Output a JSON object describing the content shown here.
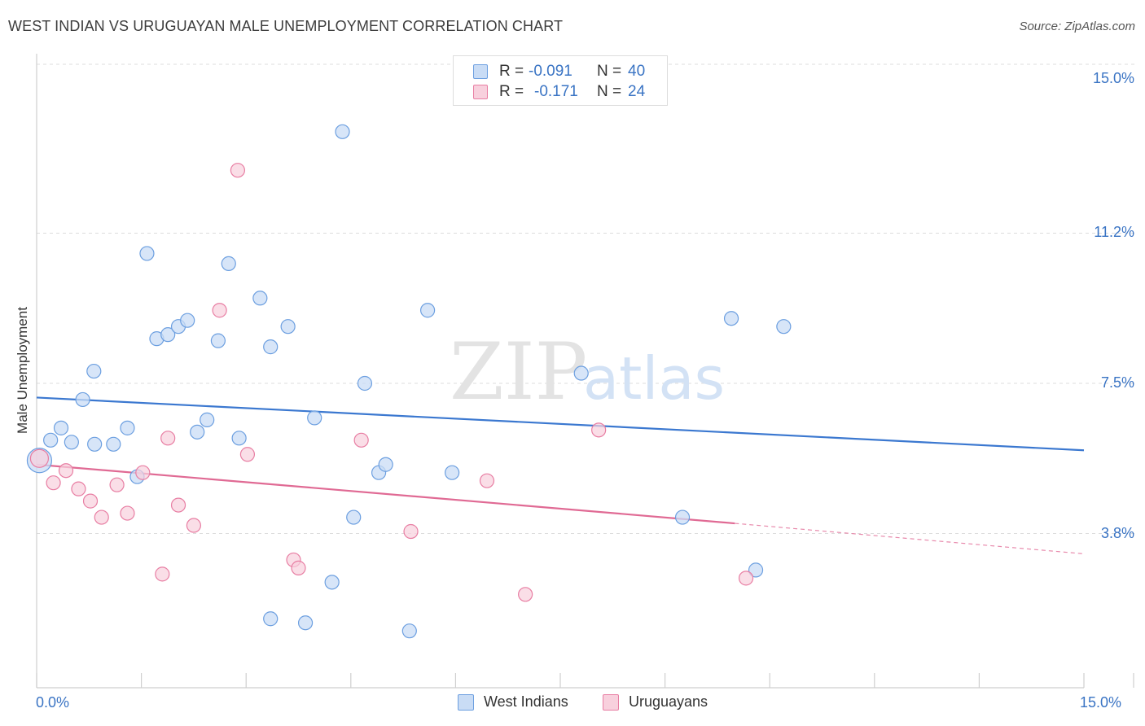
{
  "header": {
    "title": "WEST INDIAN VS URUGUAYAN MALE UNEMPLOYMENT CORRELATION CHART",
    "source": "Source: ZipAtlas.com"
  },
  "watermark": {
    "zip": "ZIP",
    "atlas": "atlas"
  },
  "legend_top": {
    "rows": [
      {
        "r_label": "R =",
        "r_value": "-0.091",
        "n_label": "N =",
        "n_value": "40",
        "color": "#aac8f0"
      },
      {
        "r_label": "R =",
        "r_value": "-0.171",
        "n_label": "N =",
        "n_value": "24",
        "color": "#f5bccd"
      }
    ]
  },
  "legend_bottom": [
    {
      "label": "West Indians",
      "color": "#aac8f0"
    },
    {
      "label": "Uruguayans",
      "color": "#f5bccd"
    }
  ],
  "chart_data": {
    "type": "scatter",
    "title": "WEST INDIAN VS URUGUAYAN MALE UNEMPLOYMENT CORRELATION CHART",
    "xlabel": "",
    "ylabel": "Male Unemployment",
    "xlim": [
      0,
      15
    ],
    "ylim": [
      0,
      15
    ],
    "x_tick_labels": [
      "0.0%",
      "15.0%"
    ],
    "y_ticks": [
      3.8,
      7.5,
      11.2,
      15.0
    ],
    "y_tick_labels": [
      "3.8%",
      "7.5%",
      "11.2%",
      "15.0%"
    ],
    "grid": true,
    "legend_position": "top-center",
    "series": [
      {
        "name": "West Indians",
        "color": "#6c9fe0",
        "fill": "#c9dcf5",
        "points": [
          [
            0.04,
            5.6
          ],
          [
            0.2,
            6.1
          ],
          [
            0.35,
            6.4
          ],
          [
            0.5,
            6.05
          ],
          [
            0.66,
            7.1
          ],
          [
            0.82,
            7.8
          ],
          [
            0.83,
            6.0
          ],
          [
            1.1,
            6.0
          ],
          [
            1.3,
            6.4
          ],
          [
            1.44,
            5.2
          ],
          [
            1.58,
            10.7
          ],
          [
            1.72,
            8.6
          ],
          [
            1.88,
            8.7
          ],
          [
            2.03,
            8.9
          ],
          [
            2.16,
            9.05
          ],
          [
            2.3,
            6.3
          ],
          [
            2.44,
            6.6
          ],
          [
            2.6,
            8.55
          ],
          [
            2.75,
            10.45
          ],
          [
            2.9,
            6.15
          ],
          [
            3.2,
            9.6
          ],
          [
            3.35,
            1.7
          ],
          [
            3.35,
            8.4
          ],
          [
            3.6,
            8.9
          ],
          [
            3.85,
            1.6
          ],
          [
            3.98,
            6.65
          ],
          [
            4.23,
            2.6
          ],
          [
            4.38,
            13.7
          ],
          [
            4.54,
            4.2
          ],
          [
            4.7,
            7.5
          ],
          [
            4.9,
            5.3
          ],
          [
            5.0,
            5.5
          ],
          [
            5.34,
            1.4
          ],
          [
            5.6,
            9.3
          ],
          [
            5.95,
            5.3
          ],
          [
            7.8,
            7.75
          ],
          [
            9.25,
            4.2
          ],
          [
            9.95,
            9.1
          ],
          [
            10.3,
            2.9
          ],
          [
            10.7,
            8.9
          ]
        ],
        "trend": [
          [
            0,
            7.15
          ],
          [
            15,
            5.85
          ]
        ]
      },
      {
        "name": "Uruguayans",
        "color": "#e87ea3",
        "fill": "#f8d0dd",
        "points": [
          [
            0.04,
            5.65
          ],
          [
            0.24,
            5.05
          ],
          [
            0.42,
            5.35
          ],
          [
            0.6,
            4.9
          ],
          [
            0.77,
            4.6
          ],
          [
            0.93,
            4.2
          ],
          [
            1.15,
            5.0
          ],
          [
            1.3,
            4.3
          ],
          [
            1.52,
            5.3
          ],
          [
            1.8,
            2.8
          ],
          [
            1.88,
            6.15
          ],
          [
            2.03,
            4.5
          ],
          [
            2.25,
            4.0
          ],
          [
            2.62,
            9.3
          ],
          [
            2.88,
            12.75
          ],
          [
            3.02,
            5.75
          ],
          [
            3.68,
            3.15
          ],
          [
            3.75,
            2.95
          ],
          [
            4.65,
            6.1
          ],
          [
            5.36,
            3.85
          ],
          [
            6.45,
            5.1
          ],
          [
            7.0,
            2.3
          ],
          [
            8.05,
            6.35
          ],
          [
            10.16,
            2.7
          ]
        ],
        "trend_solid": [
          [
            0,
            5.5
          ],
          [
            10.0,
            4.05
          ]
        ],
        "trend_dashed": [
          [
            10.0,
            4.05
          ],
          [
            15,
            3.3
          ]
        ]
      }
    ]
  }
}
